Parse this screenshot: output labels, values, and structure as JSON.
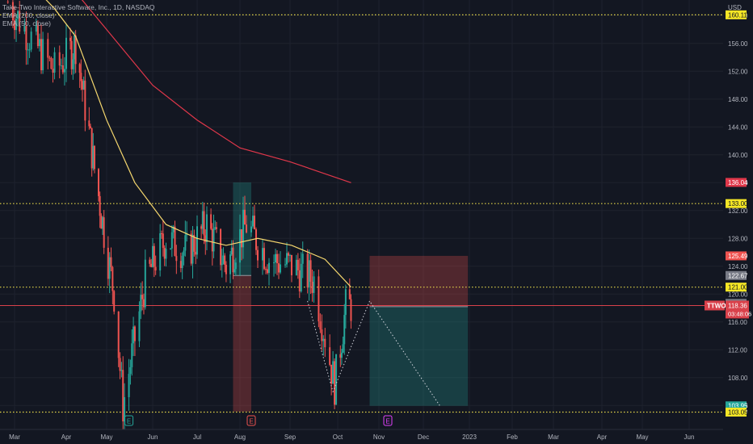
{
  "legend": {
    "symbol": "Take-Two Interactive Software, Inc., 1D, NASDAQ",
    "ema200": "EMA (200, close)",
    "ema50": "EMA (50, close)"
  },
  "colors": {
    "background": "#131722",
    "up": "#26a69a",
    "down": "#ef5350",
    "ema50": "#f5d76e",
    "ema200": "#e0374a",
    "level_line": "#e6d84a",
    "price_line": "#d9414b"
  },
  "chart_data": {
    "type": "candlestick",
    "currency": "USD",
    "ylim": [
      100,
      168
    ],
    "x_ticks": [
      "Mar",
      "Apr",
      "May",
      "Jun",
      "Jul",
      "Aug",
      "Sep",
      "Oct",
      "Nov",
      "Dec",
      "2023",
      "Feb",
      "Mar",
      "Apr",
      "May",
      "Jun"
    ],
    "y_ticks": [
      "104.00",
      "108.00",
      "112.00",
      "116.00",
      "120.00",
      "124.00",
      "128.00",
      "132.00",
      "136.00",
      "140.00",
      "144.00",
      "148.00",
      "152.00",
      "156.00",
      "160.00",
      "164.00"
    ],
    "horizontal_levels": [
      160.11,
      133.0,
      121.0,
      103.05
    ],
    "price_labels": [
      {
        "label": "160.11",
        "value": 160.11,
        "bg": "#f5e625",
        "fg": "#131722"
      },
      {
        "label": "136.04",
        "value": 136.04,
        "bg": "#e0374a",
        "fg": "#ffffff"
      },
      {
        "label": "133.00",
        "value": 133.0,
        "bg": "#f5e625",
        "fg": "#131722"
      },
      {
        "label": "125.49",
        "value": 125.49,
        "bg": "#ef5350",
        "fg": "#ffffff"
      },
      {
        "label": "122.67",
        "value": 122.67,
        "bg": "#787b86",
        "fg": "#ffffff"
      },
      {
        "label": "121.00",
        "value": 121.0,
        "bg": "#f5e625",
        "fg": "#131722"
      },
      {
        "label": "118.67",
        "value": 118.67,
        "bg": "#787b86",
        "fg": "#ffffff"
      },
      {
        "label": "103.95",
        "value": 103.95,
        "bg": "#26a69a",
        "fg": "#ffffff"
      },
      {
        "label": "103.13",
        "value": 103.13,
        "bg": "#26a69a",
        "fg": "#ffffff"
      },
      {
        "label": "103.05",
        "value": 103.05,
        "bg": "#f5e625",
        "fg": "#131722"
      }
    ],
    "last_price": {
      "ticker": "TTWO",
      "price": "118.36",
      "countdown": "03:48:06",
      "value": 118.36
    },
    "earnings_markers": [
      {
        "month": "May",
        "day": 16,
        "label": "E",
        "color": "#26a69a"
      },
      {
        "month": "Aug",
        "day": 8,
        "label": "E",
        "color": "#ef5350"
      },
      {
        "month": "Nov",
        "day": 7,
        "label": "E",
        "color": "#e040fb"
      }
    ],
    "candles_sampled": [
      {
        "date": "2022-02-25",
        "close": 162
      },
      {
        "date": "2022-03-10",
        "close": 157
      },
      {
        "date": "2022-03-25",
        "close": 152
      },
      {
        "date": "2022-04-08",
        "close": 156
      },
      {
        "date": "2022-04-22",
        "close": 138
      },
      {
        "date": "2022-05-06",
        "close": 120
      },
      {
        "date": "2022-05-12",
        "close": 104
      },
      {
        "date": "2022-05-27",
        "close": 122
      },
      {
        "date": "2022-06-10",
        "close": 128
      },
      {
        "date": "2022-06-24",
        "close": 126
      },
      {
        "date": "2022-07-08",
        "close": 130
      },
      {
        "date": "2022-07-22",
        "close": 124
      },
      {
        "date": "2022-08-05",
        "close": 130
      },
      {
        "date": "2022-08-19",
        "close": 125
      },
      {
        "date": "2022-09-02",
        "close": 124
      },
      {
        "date": "2022-09-16",
        "close": 122
      },
      {
        "date": "2022-09-29",
        "close": 107
      },
      {
        "date": "2022-10-07",
        "close": 118
      },
      {
        "date": "2022-10-11",
        "close": 118.36
      }
    ],
    "ema50": [
      {
        "date": "2022-02-25",
        "value": 168
      },
      {
        "date": "2022-03-25",
        "value": 161
      },
      {
        "date": "2022-04-08",
        "value": 157
      },
      {
        "date": "2022-05-01",
        "value": 145
      },
      {
        "date": "2022-05-20",
        "value": 136
      },
      {
        "date": "2022-06-10",
        "value": 130
      },
      {
        "date": "2022-07-01",
        "value": 128
      },
      {
        "date": "2022-07-22",
        "value": 127
      },
      {
        "date": "2022-08-12",
        "value": 128
      },
      {
        "date": "2022-09-02",
        "value": 127
      },
      {
        "date": "2022-09-23",
        "value": 125
      },
      {
        "date": "2022-10-11",
        "value": 121
      }
    ],
    "ema200": [
      {
        "date": "2022-02-25",
        "value": 170
      },
      {
        "date": "2022-04-01",
        "value": 165
      },
      {
        "date": "2022-05-01",
        "value": 158
      },
      {
        "date": "2022-06-01",
        "value": 150
      },
      {
        "date": "2022-07-01",
        "value": 145
      },
      {
        "date": "2022-08-01",
        "value": 141
      },
      {
        "date": "2022-09-01",
        "value": 139
      },
      {
        "date": "2022-10-11",
        "value": 136
      }
    ],
    "projection_path": [
      {
        "date": "2022-09-12",
        "value": 119
      },
      {
        "date": "2022-09-28",
        "value": 106
      },
      {
        "date": "2022-10-25",
        "value": 119
      },
      {
        "date": "2022-12-12",
        "value": 104
      }
    ],
    "positions": [
      {
        "type": "short",
        "start": "2022-10-25",
        "end": "2022-12-31",
        "entry": 118.2,
        "stop": 125.49,
        "target": 103.95
      },
      {
        "type": "long",
        "start": "2022-07-27",
        "end": "2022-08-08",
        "entry": 122.67,
        "stop": 103.13,
        "target": 136.04
      }
    ]
  }
}
